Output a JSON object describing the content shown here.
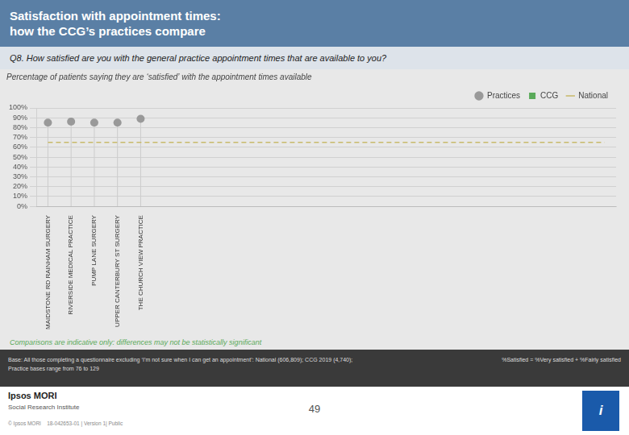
{
  "chart_data": {
    "type": "scatter",
    "title": "Satisfaction with appointment times:\nhow the CCG’s practices compare",
    "subtitle": "Percentage of patients saying they are ‘satisfied’ with the appointment times available",
    "annotations": [
      "Q8. How satisfied are you with the general practice appointment times that are available to you?",
      "Comparisons are indicative only: differences may not be statistically significant",
      "Base: All those completing a questionnaire excluding ‘I’m not sure when I can get an appointment’: National (606,809); CCG 2019 (4,740);\nPractice bases range from 76 to 129",
      "%Satisfied = %Very satisfied + %Fairly satisfied",
      "Ipsos MORI",
      "Social Research Institute",
      "© Ipsos MORI    18-042653-01 | Version 1| Public",
      "49",
      "i"
    ],
    "categories": [
      "MAIDSTONE RD RAINHAM SURGERY",
      "RIVERSIDE MEDICAL PRACTICE",
      "PUMP LANE SURGERY",
      "UPPER CANTERBURY ST SURGERY",
      "THE CHURCH VIEW PRACTICE",
      null,
      null,
      null,
      null,
      null,
      null,
      null,
      null,
      null,
      null,
      null,
      null,
      null,
      null,
      null,
      null,
      null,
      null,
      null,
      null
    ],
    "series": [
      {
        "name": "Practices",
        "type": "scatter",
        "marker": "circle",
        "color": "#999999",
        "values": [
          85,
          86,
          85,
          85,
          89,
          null,
          null,
          null,
          null,
          null,
          null,
          null,
          null,
          null,
          null,
          null,
          null,
          null,
          null,
          null,
          null,
          null,
          null,
          null,
          null
        ]
      },
      {
        "name": "CCG",
        "type": "scatter",
        "marker": "square",
        "color": "#5aaa5a",
        "values": [
          null,
          null,
          null,
          null,
          null,
          null,
          null,
          null,
          null,
          null,
          null,
          null,
          null,
          null,
          null,
          null,
          null,
          null,
          null,
          null,
          null,
          null,
          null,
          null,
          null
        ]
      },
      {
        "name": "National",
        "type": "line",
        "line_style": "dashed",
        "color": "#c8b96a",
        "values": [
          65,
          65,
          65,
          65,
          65,
          65,
          65,
          65,
          65,
          65,
          65,
          65,
          65,
          65,
          65,
          65,
          65,
          65,
          65,
          65,
          65,
          65,
          65,
          65,
          65
        ]
      }
    ],
    "ylim": [
      0,
      100
    ],
    "yticks": [
      {
        "value": 0,
        "label": "0%"
      },
      {
        "value": 10,
        "label": "10%"
      },
      {
        "value": 20,
        "label": "20%"
      },
      {
        "value": 30,
        "label": "30%"
      },
      {
        "value": 40,
        "label": "40%"
      },
      {
        "value": 50,
        "label": "50%"
      },
      {
        "value": 60,
        "label": "60%"
      },
      {
        "value": 70,
        "label": "70%"
      },
      {
        "value": 80,
        "label": "80%"
      },
      {
        "value": 90,
        "label": "90%"
      },
      {
        "value": 100,
        "label": "100%"
      }
    ],
    "grid": "y",
    "legend": "top-right"
  }
}
